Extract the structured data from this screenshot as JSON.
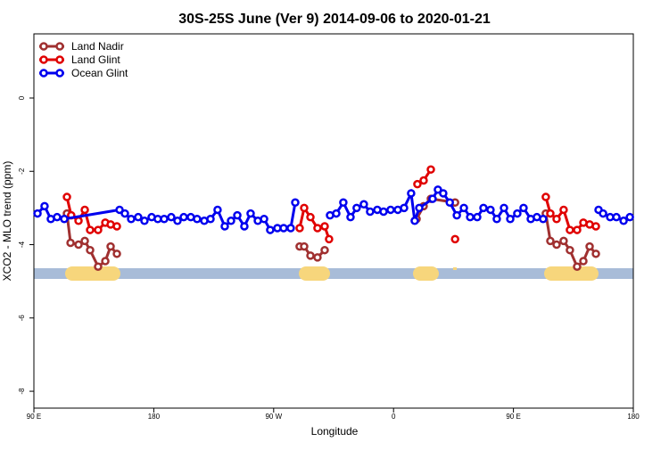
{
  "chart_data": {
    "type": "line",
    "title": "30S-25S June (Ver 9)   2014-09-06 to 2020-01-21",
    "x_label": "Longitude",
    "y_label": "XCO2 - MLO trend (ppm)",
    "xlim": [
      90,
      540
    ],
    "ylim": [
      -8.46,
      1.75
    ],
    "xticks": [
      {
        "value": 90,
        "label": "90 E"
      },
      180,
      {
        "value": 270,
        "label": "90 W"
      },
      {
        "value": 360,
        "label": "0"
      },
      {
        "value": 450,
        "label": "90 E"
      },
      180.0001
    ],
    "yticks": [
      0,
      -2,
      -4,
      -6,
      -8
    ],
    "legend": "top-left",
    "series": [
      {
        "name": "Land Nadir",
        "color": "#a03030",
        "x": [
          114.8,
          117.5,
          123.5,
          128.2,
          132.2,
          138.2,
          143.6,
          147.6,
          152.3,
          null,
          289.5,
          292.9,
          297.6,
          302.9,
          308.3,
          null,
          377.3,
          382.6,
          388.0,
          406.2,
          null,
          474.3,
          477.7,
          482.4,
          487.7,
          492.4,
          497.8,
          502.5,
          507.2,
          511.9
        ],
        "values": [
          -3.15,
          -3.95,
          -4.0,
          -3.9,
          -4.15,
          -4.6,
          -4.45,
          -4.05,
          -4.25,
          null,
          -4.05,
          -4.05,
          -4.3,
          -4.35,
          -4.15,
          null,
          -3.3,
          -2.95,
          -2.75,
          -2.85,
          null,
          -3.15,
          -3.9,
          -4.0,
          -3.9,
          -4.15,
          -4.6,
          -4.45,
          -4.05,
          -4.25
        ]
      },
      {
        "name": "Land Glint",
        "color": "#e00000",
        "x": [
          114.8,
          118.0,
          123.5,
          128.2,
          132.2,
          138.2,
          143.6,
          147.6,
          152.3,
          null,
          289.5,
          292.9,
          297.6,
          302.9,
          308.3,
          311.6,
          null,
          377.9,
          382.6,
          388.0,
          null,
          406.2,
          null,
          474.3,
          477.7,
          482.4,
          487.7,
          492.4,
          497.8,
          502.5,
          507.2,
          511.9
        ],
        "values": [
          -2.7,
          -3.2,
          -3.35,
          -3.05,
          -3.6,
          -3.6,
          -3.4,
          -3.45,
          -3.5,
          null,
          -3.55,
          -3.0,
          -3.25,
          -3.55,
          -3.5,
          -3.85,
          null,
          -2.35,
          -2.25,
          -1.95,
          null,
          -3.85,
          null,
          -2.7,
          -3.15,
          -3.3,
          -3.05,
          -3.6,
          -3.6,
          -3.4,
          -3.45,
          -3.5
        ]
      },
      {
        "name": "Ocean Glint",
        "color": "#0000ee",
        "x": [
          92.7,
          98.0,
          102.7,
          107.4,
          112.8,
          154.3,
          158.3,
          163.0,
          168.3,
          173.0,
          178.4,
          183.0,
          187.8,
          193.1,
          197.8,
          202.5,
          207.8,
          212.5,
          217.9,
          222.6,
          227.9,
          233.3,
          238.0,
          242.7,
          248.0,
          252.7,
          258.1,
          262.8,
          267.4,
          272.8,
          277.5,
          282.8,
          286.2,
          null,
          312.3,
          317.0,
          322.3,
          327.7,
          332.3,
          337.7,
          342.4,
          347.8,
          352.5,
          357.8,
          363.2,
          367.9,
          373.2,
          375.9,
          379.3,
          389.3,
          393.3,
          397.3,
          402.2,
          407.5,
          412.8,
          417.5,
          422.8,
          427.5,
          432.8,
          437.5,
          442.9,
          447.6,
          452.9,
          457.6,
          463.0,
          467.6,
          472.3,
          null,
          513.9,
          517.3,
          522.6,
          527.3,
          532.7,
          537.4
        ],
        "values": [
          -3.15,
          -2.95,
          -3.3,
          -3.25,
          -3.3,
          -3.05,
          -3.15,
          -3.3,
          -3.25,
          -3.35,
          -3.25,
          -3.3,
          -3.3,
          -3.25,
          -3.35,
          -3.25,
          -3.25,
          -3.3,
          -3.35,
          -3.3,
          -3.05,
          -3.5,
          -3.35,
          -3.2,
          -3.5,
          -3.15,
          -3.35,
          -3.3,
          -3.6,
          -3.55,
          -3.55,
          -3.55,
          -2.85,
          null,
          -3.2,
          -3.15,
          -2.85,
          -3.25,
          -3.0,
          -2.9,
          -3.1,
          -3.05,
          -3.1,
          -3.05,
          -3.05,
          -3.0,
          -2.6,
          -3.35,
          -3.0,
          -2.75,
          -2.5,
          -2.6,
          -2.85,
          -3.2,
          -3.0,
          -3.25,
          -3.25,
          -3.0,
          -3.05,
          -3.3,
          -3.0,
          -3.3,
          -3.15,
          -3.0,
          -3.3,
          -3.25,
          -3.3,
          null,
          -3.05,
          -3.15,
          -3.25,
          -3.25,
          -3.35,
          -3.25
        ]
      }
    ]
  }
}
